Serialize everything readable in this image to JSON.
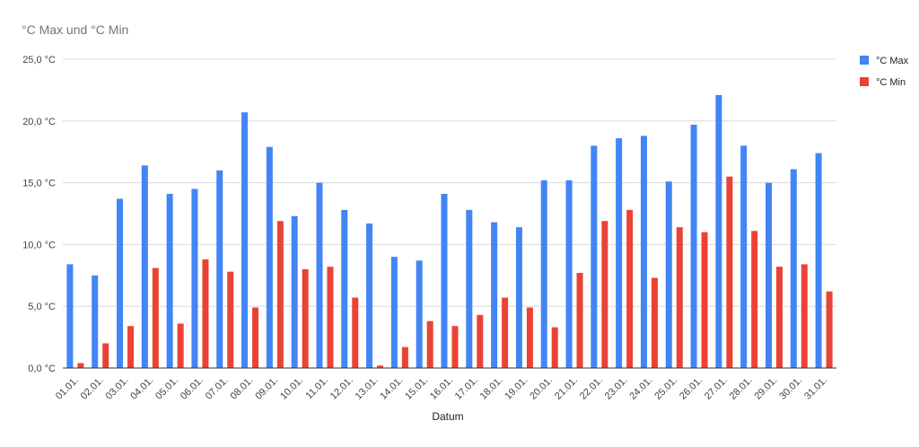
{
  "chart_data": {
    "type": "bar",
    "title": "°C Max und °C Min",
    "xlabel": "Datum",
    "ylabel": "",
    "ylim": [
      0,
      25
    ],
    "yticks": [
      0,
      5,
      10,
      15,
      20,
      25
    ],
    "ytick_labels": [
      "0,0 °C",
      "5,0 °C",
      "10,0 °C",
      "15,0 °C",
      "20,0 °C",
      "25,0 °C"
    ],
    "grid": true,
    "legend_position": "right",
    "categories": [
      "01.01.",
      "02.01.",
      "03.01.",
      "04.01.",
      "05.01.",
      "06.01.",
      "07.01.",
      "08.01.",
      "09.01.",
      "10.01.",
      "11.01.",
      "12.01.",
      "13.01.",
      "14.01.",
      "15.01.",
      "16.01.",
      "17.01.",
      "18.01.",
      "19.01.",
      "20.01.",
      "21.01.",
      "22.01.",
      "23.01.",
      "24.01.",
      "25.01.",
      "26.01.",
      "27.01.",
      "28.01.",
      "29.01.",
      "30.01.",
      "31.01."
    ],
    "series": [
      {
        "name": "°C Max",
        "color": "#4285f4",
        "values": [
          8.4,
          7.5,
          13.7,
          16.4,
          14.1,
          14.5,
          16.0,
          20.7,
          17.9,
          12.3,
          15.0,
          12.8,
          11.7,
          9.0,
          8.7,
          14.1,
          12.8,
          11.8,
          11.4,
          15.2,
          15.2,
          18.0,
          18.6,
          18.8,
          15.1,
          19.7,
          22.1,
          18.0,
          15.0,
          16.1,
          17.4
        ]
      },
      {
        "name": "°C Min",
        "color": "#ea4335",
        "values": [
          0.4,
          2.0,
          3.4,
          8.1,
          3.6,
          8.8,
          7.8,
          4.9,
          11.9,
          8.0,
          8.2,
          5.7,
          0.2,
          1.7,
          3.8,
          3.4,
          4.3,
          5.7,
          4.9,
          3.3,
          7.7,
          11.9,
          12.8,
          7.3,
          11.4,
          11.0,
          15.5,
          11.1,
          8.2,
          8.4,
          6.2
        ]
      }
    ]
  }
}
